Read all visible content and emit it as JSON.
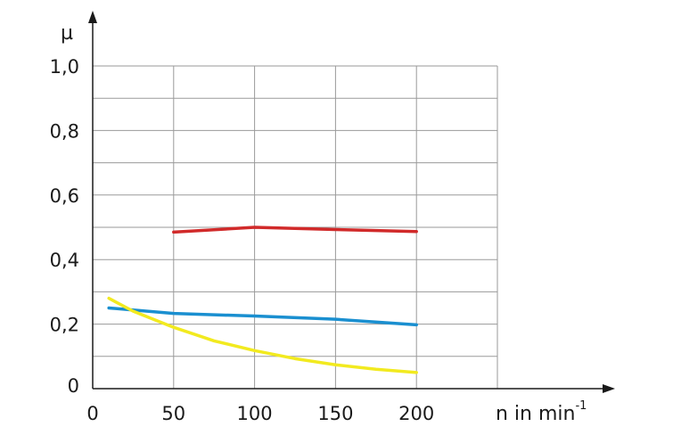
{
  "chart_data": {
    "type": "line",
    "ylabel": "µ",
    "xlabel_text": "n in min",
    "xlabel_superscript": "-1",
    "xlim": [
      0,
      250
    ],
    "ylim": [
      0,
      1.0
    ],
    "x_ticks": [
      0,
      50,
      100,
      150,
      200
    ],
    "x_tick_labels": [
      "0",
      "50",
      "100",
      "150",
      "200"
    ],
    "y_ticks": [
      0,
      0.2,
      0.4,
      0.6,
      0.8,
      1.0
    ],
    "y_tick_labels": [
      "0",
      "0,2",
      "0,4",
      "0,6",
      "0,8",
      "1,0"
    ],
    "grid": true,
    "series": [
      {
        "color": "#d12a2a",
        "x": [
          50,
          100,
          150,
          200
        ],
        "y": [
          0.485,
          0.5,
          0.493,
          0.487
        ]
      },
      {
        "color": "#1a8fd0",
        "x": [
          10,
          50,
          100,
          150,
          200
        ],
        "y": [
          0.25,
          0.233,
          0.225,
          0.215,
          0.198
        ]
      },
      {
        "color": "#f2ea1f",
        "x": [
          10,
          25,
          50,
          75,
          100,
          125,
          150,
          175,
          200
        ],
        "y": [
          0.28,
          0.24,
          0.19,
          0.148,
          0.118,
          0.093,
          0.074,
          0.06,
          0.05
        ]
      }
    ]
  }
}
